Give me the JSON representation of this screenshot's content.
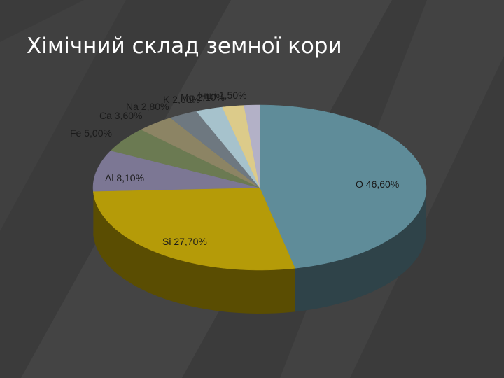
{
  "slide": {
    "title": "Хімічний склад земної кори"
  },
  "chart_data": {
    "type": "pie",
    "style": "3d",
    "title": "",
    "slices": [
      {
        "label": "O  46,60%",
        "value": 46.6,
        "color": "#5f8c99",
        "side": "#2f4349"
      },
      {
        "label": "Si  27,70%",
        "value": 27.7,
        "color": "#b59b08",
        "side": "#5a4d02"
      },
      {
        "label": "Al  8,10%",
        "value": 8.1,
        "color": "#7c7794",
        "side": "#3d3a4a"
      },
      {
        "label": "Fe 5,00%",
        "value": 5.0,
        "color": "#6b7a52",
        "side": "#353d28"
      },
      {
        "label": "Ca 3,60%",
        "value": 3.6,
        "color": "#8c8464",
        "side": "#464232"
      },
      {
        "label": "Na 2,80%",
        "value": 2.8,
        "color": "#6e7880",
        "side": "#373c40"
      },
      {
        "label": "K 2,60%",
        "value": 2.6,
        "color": "#a6c2cc",
        "side": "#536166"
      },
      {
        "label": "Mg 2,10%",
        "value": 2.1,
        "color": "#dccb8a",
        "side": "#6e6545"
      },
      {
        "label": "Інші 1,50%",
        "value": 1.5,
        "color": "#b3b1c7",
        "side": "#595863"
      }
    ],
    "label_color": "#1a1a1a",
    "legend": "none"
  }
}
